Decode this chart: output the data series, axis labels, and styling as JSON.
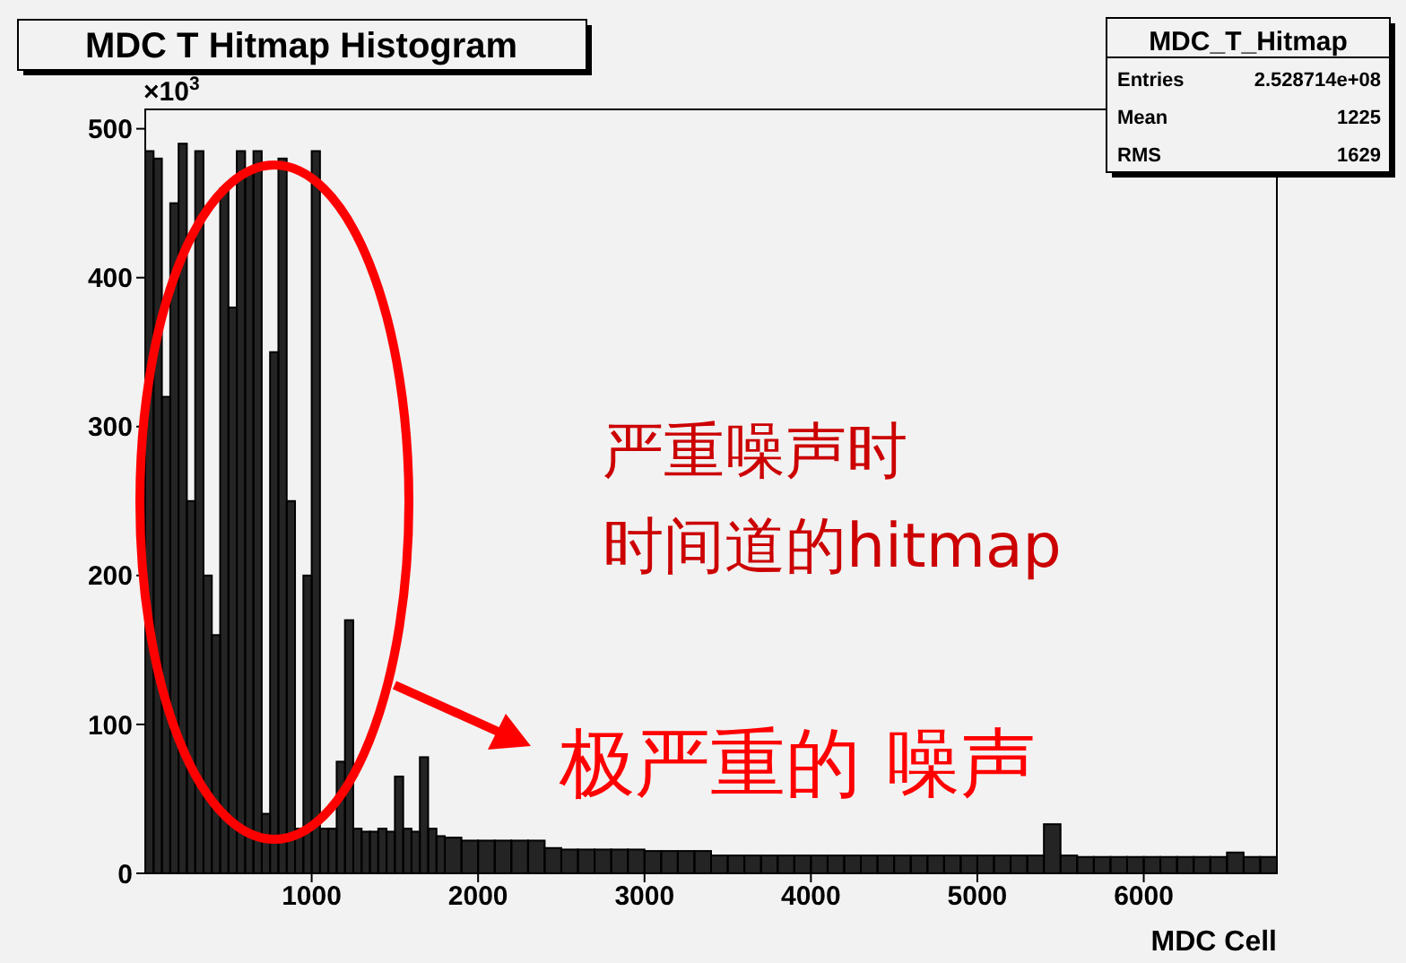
{
  "chart_data": {
    "type": "histogram",
    "title": "MDC T Hitmap Histogram",
    "xlabel": "MDC Cell",
    "ylabel": "×10$^{3}$",
    "bins": [
      0,
      50,
      100,
      150,
      200,
      250,
      300,
      350,
      400,
      450,
      500,
      550,
      600,
      650,
      700,
      750,
      800,
      850,
      900,
      950,
      1000,
      1050,
      1100,
      1150,
      1200,
      1250,
      1300,
      1350,
      1400,
      1450,
      1500,
      1550,
      1600,
      1650,
      1700,
      1750,
      1800,
      1900,
      2000,
      2100,
      2200,
      2300,
      2400,
      2500,
      2600,
      2700,
      2800,
      2900,
      3000,
      3100,
      3200,
      3300,
      3400,
      3500,
      3600,
      3700,
      3800,
      3900,
      4000,
      4100,
      4200,
      4300,
      4400,
      4500,
      4600,
      4700,
      4800,
      4900,
      5000,
      5100,
      5200,
      5300,
      5400,
      5500,
      5600,
      5700,
      5800,
      5900,
      6000,
      6100,
      6200,
      6300,
      6400,
      6500,
      6600,
      6700,
      6800
    ],
    "values": [
      485,
      480,
      320,
      450,
      490,
      250,
      485,
      200,
      160,
      460,
      380,
      485,
      470,
      485,
      40,
      350,
      480,
      250,
      30,
      200,
      485,
      30,
      30,
      75,
      170,
      30,
      28,
      28,
      30,
      28,
      65,
      30,
      28,
      78,
      30,
      25,
      24,
      22,
      22,
      22,
      22,
      22,
      17,
      16,
      16,
      16,
      16,
      16,
      15,
      15,
      15,
      15,
      12,
      12,
      12,
      12,
      12,
      12,
      12,
      12,
      12,
      12,
      12,
      12,
      12,
      12,
      12,
      12,
      12,
      12,
      12,
      12,
      33,
      12,
      11,
      11,
      11,
      11,
      11,
      11,
      11,
      11,
      11,
      14,
      11,
      11
    ],
    "color": "#000000",
    "xlim": [
      0,
      6800
    ],
    "xticks": [
      1000,
      2000,
      3000,
      4000,
      5000,
      6000
    ],
    "ylim": [
      0,
      513
    ],
    "yticks": [
      0,
      100,
      200,
      300,
      400,
      500
    ],
    "annotations": [
      "MDC_T_Hitmap",
      "Entries",
      "2.528714e+08",
      "Mean",
      "1225",
      "RMS",
      "1629",
      "严重噪声时",
      "时间道的hitmap",
      "极严重的 噪声"
    ]
  }
}
